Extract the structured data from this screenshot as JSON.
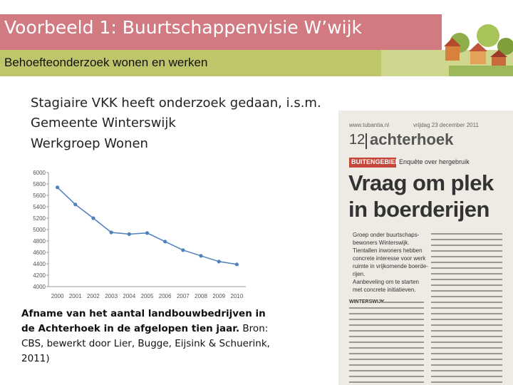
{
  "header": {
    "title": "Voorbeeld 1: Buurtschappenvisie W’wijk",
    "subtitle": "Behoefteonderzoek wonen en werken"
  },
  "bullets": [
    "Stagiaire VKK heeft onderzoek gedaan, i.s.m.",
    "Gemeente Winterswijk",
    "Werkgroep Wonen"
  ],
  "chart_data": {
    "type": "line",
    "categories": [
      "2000",
      "2001",
      "2002",
      "2003",
      "2004",
      "2005",
      "2006",
      "2007",
      "2008",
      "2009",
      "2010"
    ],
    "values": [
      5740,
      5440,
      5200,
      4950,
      4920,
      4940,
      4790,
      4640,
      4540,
      4440,
      4390
    ],
    "color": "#4f81bd",
    "ylim": [
      4000,
      6000
    ],
    "yticks": [
      4000,
      4200,
      4400,
      4600,
      4800,
      5000,
      5200,
      5400,
      5600,
      5800,
      6000
    ],
    "grid": false
  },
  "caption": {
    "bold": "Afname van het aantal landbouwbedrijven in de Achterhoek in de afgelopen tien jaar.",
    "source": "Bron: CBS, bewerkt door Lier, Bugge, Eijsink & Schuerink, 2011)"
  },
  "clipping": {
    "site": "www.tubantia.nl",
    "date": "vrijdag 23 december 2011",
    "page": "12",
    "section": "achterhoek",
    "label": "BUITENGEBIED",
    "kicker": "Enquête over hergebruik",
    "headline": [
      "Vraag om plek",
      "in boerderijen"
    ],
    "points": [
      "Groep onder buurtschaps-",
      "bewoners Winterswijk.",
      "Tientallen inwoners hebben",
      "concrete interesse voor werk",
      "ruimte in vrijkomende boerde-",
      "rijen.",
      "Aanbeveling om te starten",
      "met concrete initiatieven."
    ],
    "dateline": "WINTERSWIJK"
  }
}
